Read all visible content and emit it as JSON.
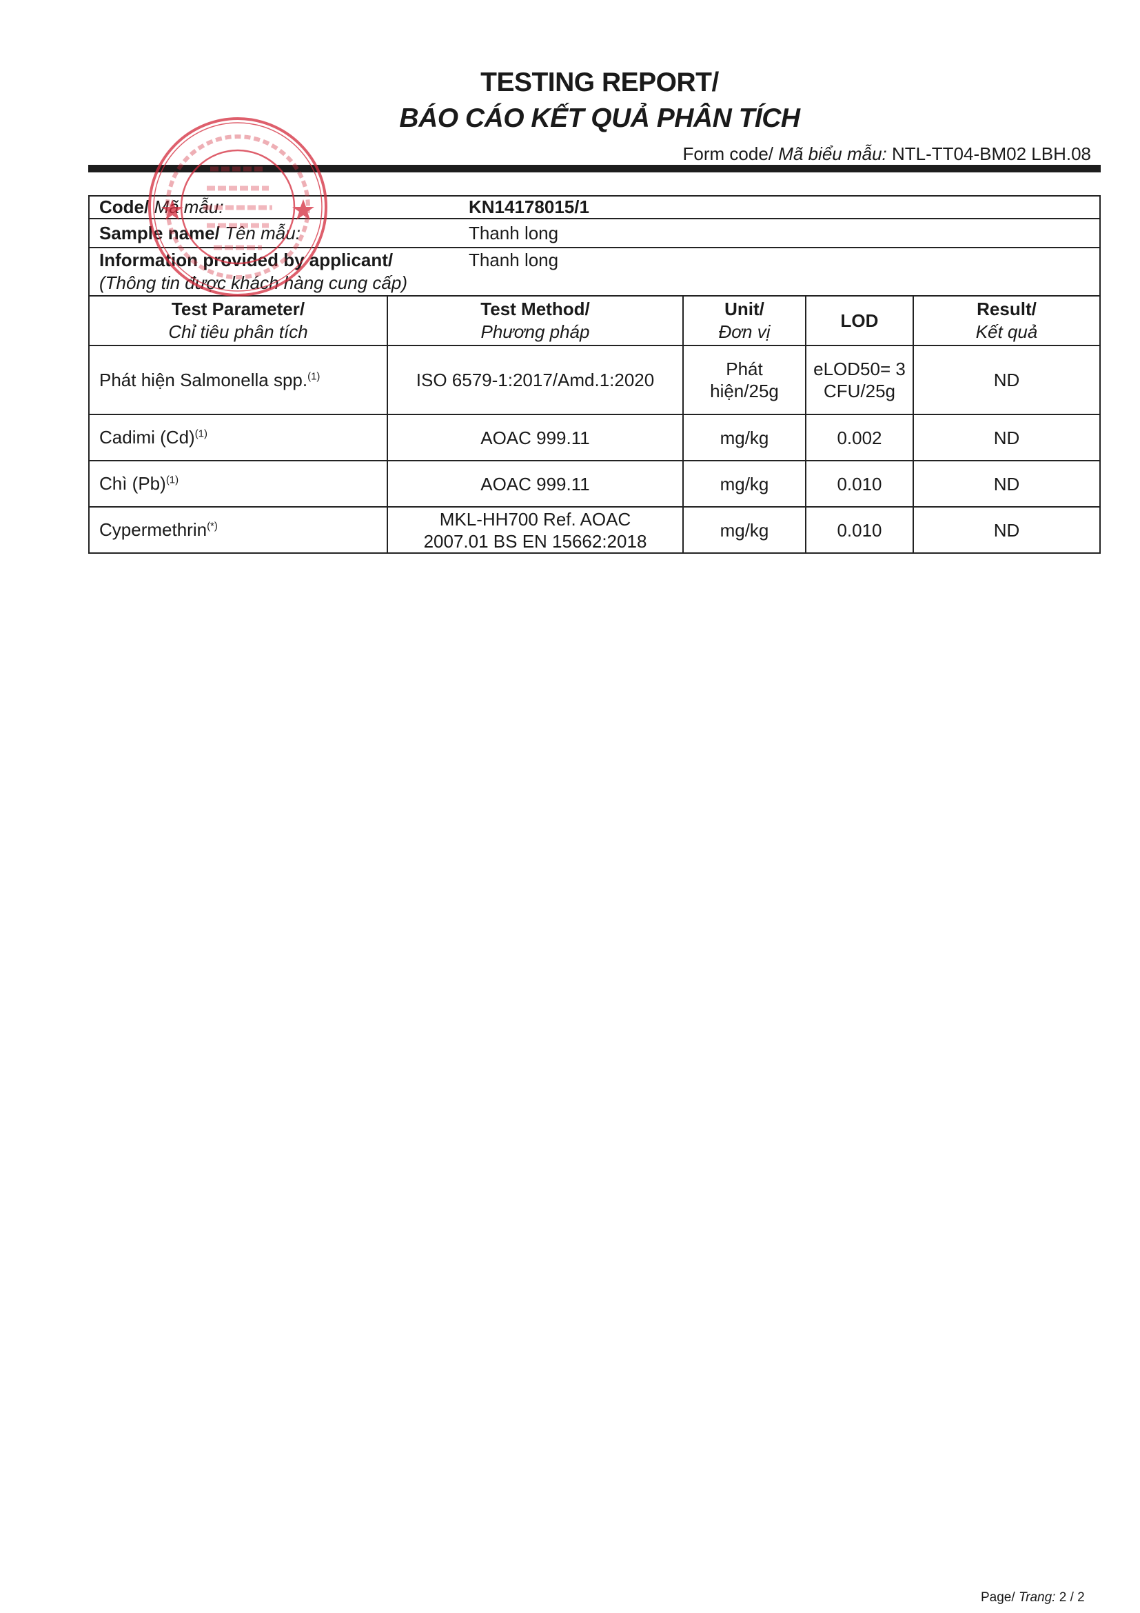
{
  "header": {
    "title_en": "TESTING REPORT/",
    "title_vi": "BÁO CÁO KẾT QUẢ PHÂN TÍCH",
    "form_code_label": "Form code/",
    "form_code_label_vi": "Mã biểu mẫu:",
    "form_code_value": "NTL-TT04-BM02 LBH.08"
  },
  "stamp": {
    "text": "M.S.D.N: 1801088223 - C.T.C.P - CÔNG TY CỔ PHẦN KHOA HỌC VÀ CÔNG NGHỆ NATEK - TP. CẦN THƠ",
    "color": "#d42a3c"
  },
  "info": {
    "code_label": "Code/",
    "code_label_vi": "Mã mẫu:",
    "code_value": "KN14178015/1",
    "sample_label": "Sample name/",
    "sample_label_vi": "Tên mẫu:",
    "sample_value": "Thanh long",
    "applicant_label": "Information provided by applicant/",
    "applicant_label_vi": "(Thông tin được khách hàng cung cấp)",
    "applicant_value": "Thanh long"
  },
  "results": {
    "headers": [
      {
        "en": "Test Parameter/",
        "vi": "Chỉ tiêu phân tích"
      },
      {
        "en": "Test Method/",
        "vi": "Phương pháp"
      },
      {
        "en": "Unit/",
        "vi": "Đơn vị"
      },
      {
        "en": "LOD",
        "vi": ""
      },
      {
        "en": "Result/",
        "vi": "Kết quả"
      }
    ],
    "rows": [
      {
        "parameter": "Phát hiện Salmonella spp.",
        "note": "(1)",
        "method": "ISO 6579-1:2017/Amd.1:2020",
        "unit": "Phát hiện/25g",
        "lod": "eLOD50= 3 CFU/25g",
        "result": "ND"
      },
      {
        "parameter": "Cadimi (Cd)",
        "note": "(1)",
        "method": "AOAC 999.11",
        "unit": "mg/kg",
        "lod": "0.002",
        "result": "ND"
      },
      {
        "parameter": "Chì (Pb)",
        "note": "(1)",
        "method": "AOAC 999.11",
        "unit": "mg/kg",
        "lod": "0.010",
        "result": "ND"
      },
      {
        "parameter": "Cypermethrin",
        "note": "(*)",
        "method": "MKL-HH700 Ref. AOAC 2007.01 BS EN  15662:2018",
        "unit": "mg/kg",
        "lod": "0.010",
        "result": "ND"
      }
    ]
  },
  "footer": {
    "page_label": "Page/",
    "page_label_vi": "Trang:",
    "page_value": "2 / 2"
  }
}
